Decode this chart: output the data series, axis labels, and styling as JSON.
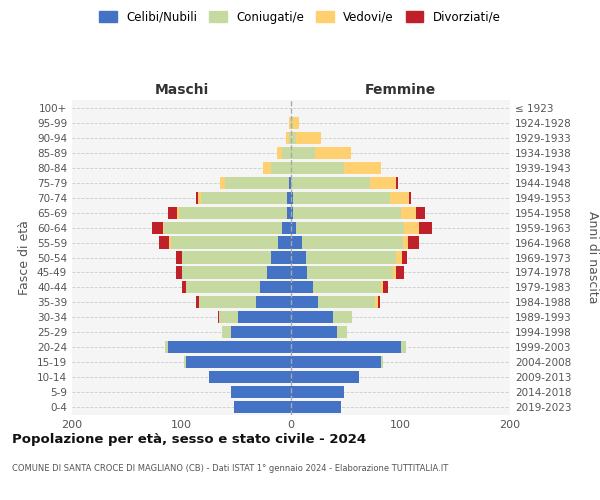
{
  "age_groups": [
    "0-4",
    "5-9",
    "10-14",
    "15-19",
    "20-24",
    "25-29",
    "30-34",
    "35-39",
    "40-44",
    "45-49",
    "50-54",
    "55-59",
    "60-64",
    "65-69",
    "70-74",
    "75-79",
    "80-84",
    "85-89",
    "90-94",
    "95-99",
    "100+"
  ],
  "birth_years": [
    "2019-2023",
    "2014-2018",
    "2009-2013",
    "2004-2008",
    "1999-2003",
    "1994-1998",
    "1989-1993",
    "1984-1988",
    "1979-1983",
    "1974-1978",
    "1969-1973",
    "1964-1968",
    "1959-1963",
    "1954-1958",
    "1949-1953",
    "1944-1948",
    "1939-1943",
    "1934-1938",
    "1929-1933",
    "1924-1928",
    "≤ 1923"
  ],
  "colors": {
    "celibi": "#4472C4",
    "coniugati": "#C5D9A0",
    "vedovi": "#FFD070",
    "divorziati": "#C0202A"
  },
  "maschi": {
    "celibi": [
      52,
      55,
      75,
      96,
      112,
      55,
      48,
      32,
      28,
      22,
      18,
      12,
      8,
      4,
      4,
      2,
      0,
      0,
      0,
      0,
      0
    ],
    "coniugati": [
      0,
      0,
      0,
      2,
      3,
      8,
      18,
      52,
      68,
      78,
      82,
      98,
      108,
      98,
      78,
      58,
      18,
      8,
      2,
      0,
      0
    ],
    "vedovi": [
      0,
      0,
      0,
      0,
      0,
      0,
      0,
      0,
      0,
      0,
      0,
      1,
      1,
      2,
      3,
      5,
      8,
      5,
      3,
      2,
      0
    ],
    "divorziati": [
      0,
      0,
      0,
      0,
      0,
      0,
      1,
      3,
      4,
      5,
      5,
      10,
      10,
      8,
      2,
      0,
      0,
      0,
      0,
      0,
      0
    ]
  },
  "femmine": {
    "celibi": [
      46,
      48,
      62,
      82,
      100,
      42,
      38,
      25,
      20,
      15,
      14,
      10,
      5,
      2,
      2,
      0,
      0,
      0,
      0,
      0,
      0
    ],
    "coniugati": [
      0,
      0,
      0,
      2,
      5,
      9,
      18,
      52,
      62,
      78,
      82,
      92,
      98,
      98,
      88,
      72,
      48,
      22,
      5,
      2,
      0
    ],
    "vedovi": [
      0,
      0,
      0,
      0,
      0,
      0,
      0,
      2,
      2,
      3,
      5,
      5,
      14,
      14,
      18,
      24,
      34,
      33,
      22,
      5,
      0
    ],
    "divorziati": [
      0,
      0,
      0,
      0,
      0,
      0,
      0,
      2,
      5,
      7,
      5,
      10,
      12,
      8,
      2,
      2,
      0,
      0,
      0,
      0,
      0
    ]
  },
  "title": "Popolazione per età, sesso e stato civile - 2024",
  "subtitle": "COMUNE DI SANTA CROCE DI MAGLIANO (CB) - Dati ISTAT 1° gennaio 2024 - Elaborazione TUTTITALIA.IT",
  "xlabel_left": "Maschi",
  "xlabel_right": "Femmine",
  "ylabel_left": "Fasce di età",
  "ylabel_right": "Anni di nascita",
  "xlim": 200,
  "legend_labels": [
    "Celibi/Nubili",
    "Coniugati/e",
    "Vedovi/e",
    "Divorziati/e"
  ],
  "bg_color": "#f5f5f5"
}
